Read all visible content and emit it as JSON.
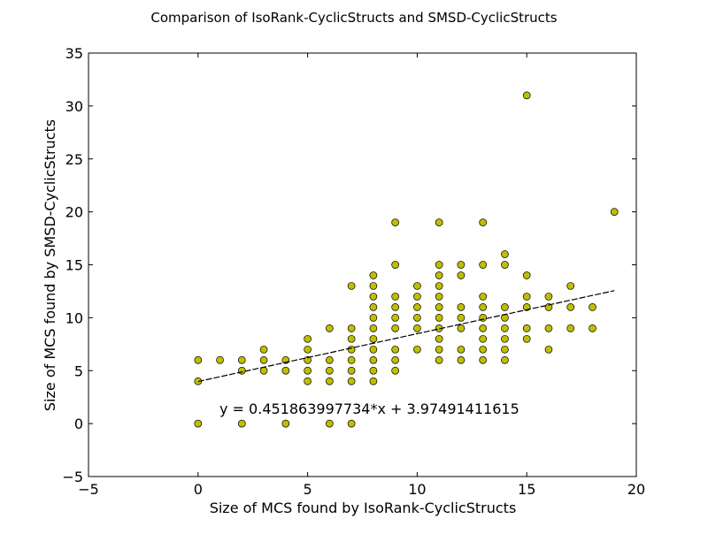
{
  "chart_data": {
    "type": "scatter",
    "title": "Comparison of IsoRank-CyclicStructs and SMSD-CyclicStructs",
    "xlabel": "Size of MCS found by IsoRank-CyclicStructs",
    "ylabel": "Size of MCS found by SMSD-CyclicStructs",
    "xlim": [
      -5,
      20
    ],
    "ylim": [
      -5,
      35
    ],
    "xticks": [
      "−5",
      "0",
      "5",
      "10",
      "15",
      "20"
    ],
    "yticks": [
      "−5",
      "0",
      "5",
      "10",
      "15",
      "20",
      "25",
      "30",
      "35"
    ],
    "grid": false,
    "marker_color": "#bfbf00",
    "fit_line": {
      "equation": "y = 0.451863997734*x + 3.97491411615",
      "slope": 0.451863997734,
      "intercept": 3.97491411615,
      "x_range": [
        0,
        19
      ]
    },
    "points": [
      [
        0,
        0
      ],
      [
        0,
        4
      ],
      [
        0,
        6
      ],
      [
        1,
        6
      ],
      [
        2,
        0
      ],
      [
        2,
        5
      ],
      [
        2,
        6
      ],
      [
        3,
        5
      ],
      [
        3,
        6
      ],
      [
        3,
        7
      ],
      [
        4,
        0
      ],
      [
        4,
        5
      ],
      [
        4,
        6
      ],
      [
        5,
        4
      ],
      [
        5,
        5
      ],
      [
        5,
        6
      ],
      [
        5,
        7
      ],
      [
        5,
        8
      ],
      [
        6,
        0
      ],
      [
        6,
        4
      ],
      [
        6,
        5
      ],
      [
        6,
        6
      ],
      [
        6,
        9
      ],
      [
        7,
        0
      ],
      [
        7,
        4
      ],
      [
        7,
        5
      ],
      [
        7,
        6
      ],
      [
        7,
        7
      ],
      [
        7,
        8
      ],
      [
        7,
        9
      ],
      [
        7,
        13
      ],
      [
        8,
        4
      ],
      [
        8,
        5
      ],
      [
        8,
        6
      ],
      [
        8,
        7
      ],
      [
        8,
        8
      ],
      [
        8,
        9
      ],
      [
        8,
        10
      ],
      [
        8,
        11
      ],
      [
        8,
        12
      ],
      [
        8,
        13
      ],
      [
        8,
        14
      ],
      [
        9,
        5
      ],
      [
        9,
        6
      ],
      [
        9,
        7
      ],
      [
        9,
        9
      ],
      [
        9,
        10
      ],
      [
        9,
        11
      ],
      [
        9,
        12
      ],
      [
        9,
        15
      ],
      [
        9,
        19
      ],
      [
        10,
        7
      ],
      [
        10,
        9
      ],
      [
        10,
        10
      ],
      [
        10,
        11
      ],
      [
        10,
        12
      ],
      [
        10,
        13
      ],
      [
        11,
        6
      ],
      [
        11,
        7
      ],
      [
        11,
        8
      ],
      [
        11,
        9
      ],
      [
        11,
        10
      ],
      [
        11,
        11
      ],
      [
        11,
        12
      ],
      [
        11,
        13
      ],
      [
        11,
        14
      ],
      [
        11,
        15
      ],
      [
        11,
        19
      ],
      [
        12,
        6
      ],
      [
        12,
        7
      ],
      [
        12,
        9
      ],
      [
        12,
        10
      ],
      [
        12,
        11
      ],
      [
        12,
        14
      ],
      [
        12,
        15
      ],
      [
        13,
        6
      ],
      [
        13,
        7
      ],
      [
        13,
        8
      ],
      [
        13,
        9
      ],
      [
        13,
        10
      ],
      [
        13,
        11
      ],
      [
        13,
        12
      ],
      [
        13,
        15
      ],
      [
        13,
        19
      ],
      [
        14,
        6
      ],
      [
        14,
        7
      ],
      [
        14,
        8
      ],
      [
        14,
        9
      ],
      [
        14,
        10
      ],
      [
        14,
        11
      ],
      [
        14,
        15
      ],
      [
        14,
        16
      ],
      [
        15,
        8
      ],
      [
        15,
        9
      ],
      [
        15,
        11
      ],
      [
        15,
        12
      ],
      [
        15,
        14
      ],
      [
        15,
        31
      ],
      [
        16,
        7
      ],
      [
        16,
        9
      ],
      [
        16,
        11
      ],
      [
        16,
        12
      ],
      [
        17,
        9
      ],
      [
        17,
        11
      ],
      [
        17,
        13
      ],
      [
        18,
        9
      ],
      [
        18,
        11
      ],
      [
        19,
        20
      ]
    ]
  }
}
